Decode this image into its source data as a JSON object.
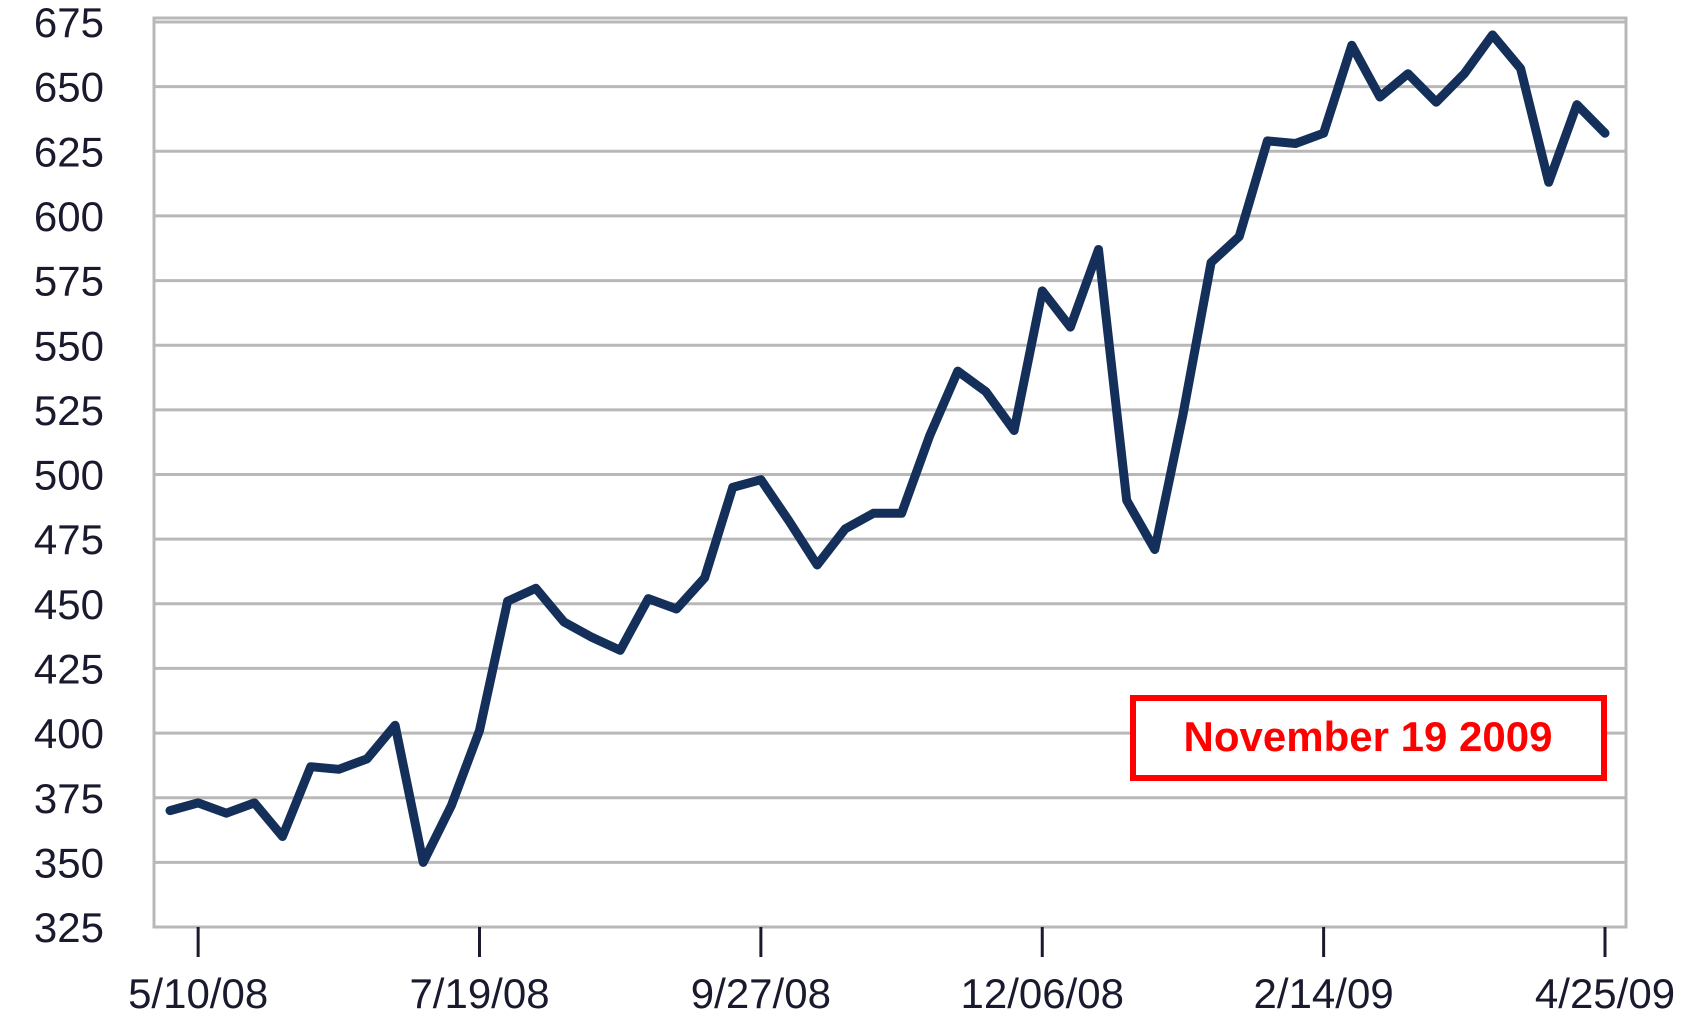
{
  "chart_data": {
    "type": "line",
    "categories": [
      null,
      "5/10/08",
      null,
      null,
      null,
      null,
      null,
      null,
      null,
      null,
      null,
      "7/19/08",
      null,
      null,
      null,
      null,
      null,
      null,
      null,
      null,
      null,
      "9/27/08",
      null,
      null,
      null,
      null,
      null,
      null,
      null,
      null,
      null,
      "12/06/08",
      null,
      null,
      null,
      null,
      null,
      null,
      null,
      null,
      null,
      "2/14/09",
      null,
      null,
      null,
      null,
      null,
      null,
      null,
      null,
      null,
      "4/25/09"
    ],
    "series": [
      {
        "color": "#14305a",
        "values": [
          370,
          373,
          369,
          373,
          360,
          387,
          386,
          390,
          403,
          350,
          372,
          401,
          451,
          456,
          443,
          437,
          432,
          452,
          448,
          460,
          495,
          498,
          482,
          465,
          479,
          485,
          485,
          515,
          540,
          532,
          517,
          571,
          557,
          587,
          490,
          471,
          523,
          582,
          592,
          629,
          628,
          632,
          666,
          646,
          655,
          644,
          655,
          670,
          657,
          613,
          643,
          632
        ]
      }
    ],
    "ylim": [
      325,
      675
    ],
    "yticks": [
      325,
      350,
      375,
      400,
      425,
      450,
      475,
      500,
      525,
      550,
      575,
      600,
      625,
      650,
      675
    ],
    "grid": true,
    "annotation": "November 19 2009"
  }
}
